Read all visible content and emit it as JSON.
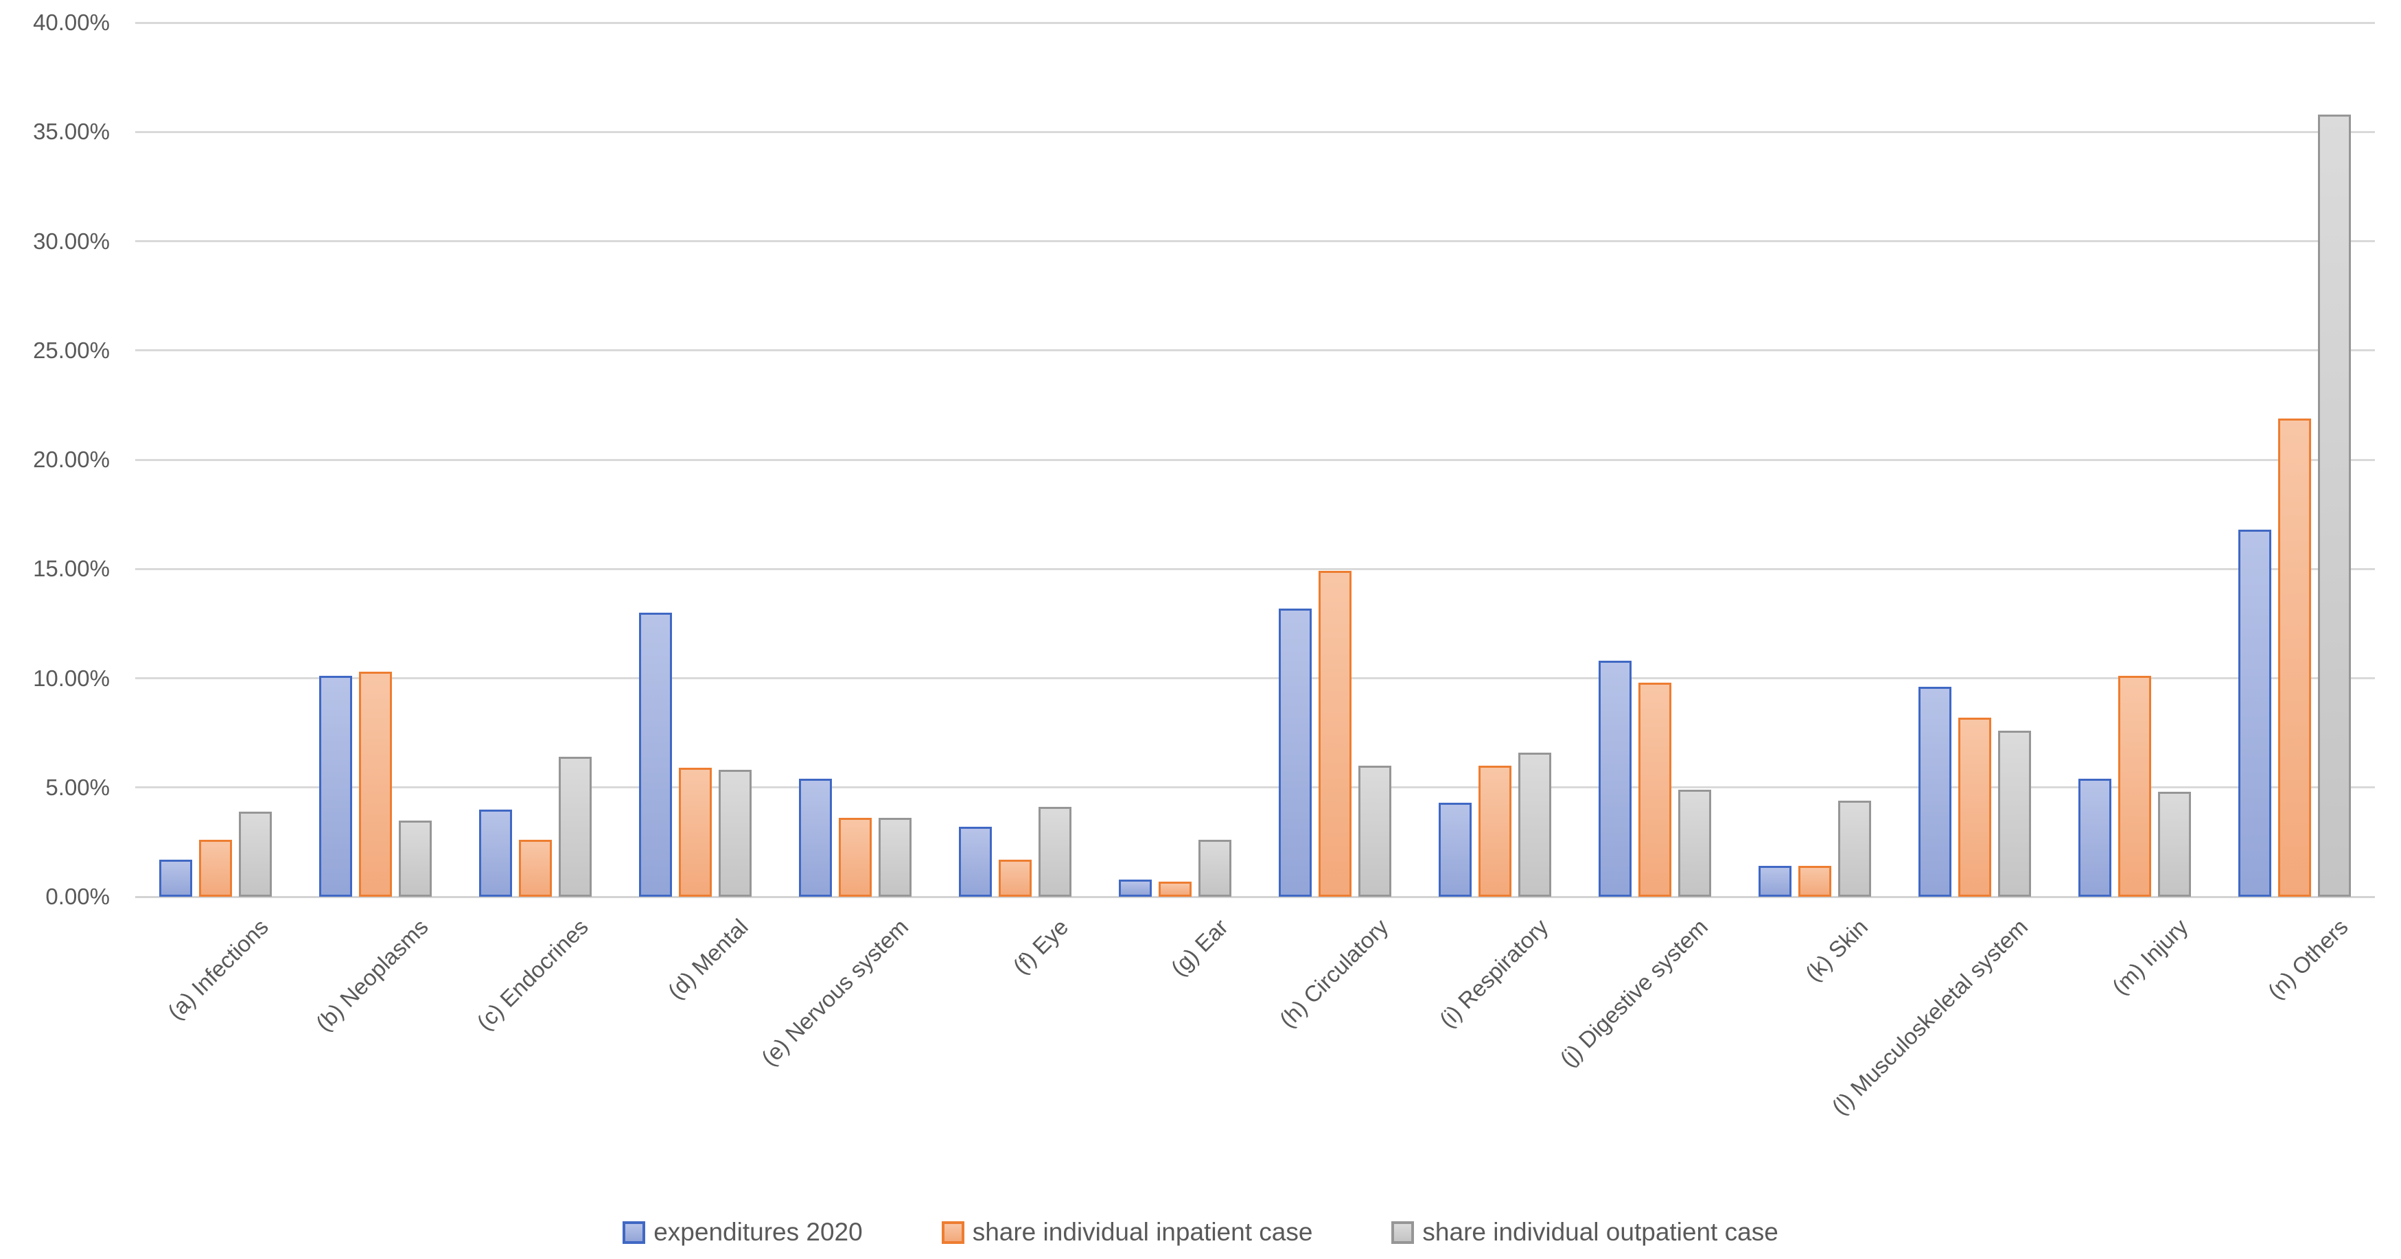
{
  "chart_data": {
    "type": "bar",
    "title": "",
    "categories": [
      "(a) Infections",
      "(b) Neoplasms",
      "(c) Endocrines",
      "(d) Mental",
      "(e) Nervous system",
      "(f) Eye",
      "(g) Ear",
      "(h) Circulatory",
      "(i) Respiratory",
      "(j) Digestive system",
      "(k) Skin",
      "(l) Musculoskeletal system",
      "(m) Injury",
      "(n) Others"
    ],
    "series": [
      {
        "name": "expenditures 2020",
        "values": [
          1.7,
          10.1,
          4.0,
          13.0,
          5.4,
          3.2,
          0.8,
          13.2,
          4.3,
          10.8,
          1.4,
          9.6,
          5.4,
          16.8
        ],
        "fill_top": "#B7C3E8",
        "fill_bottom": "#93A5D8",
        "border": "#4068C4"
      },
      {
        "name": "share individual inpatient case",
        "values": [
          2.6,
          10.3,
          2.6,
          5.9,
          3.6,
          1.7,
          0.7,
          14.9,
          6.0,
          9.8,
          1.4,
          8.2,
          10.1,
          21.9
        ],
        "fill_top": "#F8C6A6",
        "fill_bottom": "#F3A97B",
        "border": "#ED7D31"
      },
      {
        "name": "share individual outpatient case",
        "values": [
          3.9,
          3.5,
          6.4,
          5.8,
          3.6,
          4.1,
          2.6,
          6.0,
          6.6,
          4.9,
          4.4,
          7.6,
          4.8,
          35.8
        ],
        "fill_top": "#DBDBDB",
        "fill_bottom": "#C4C4C4",
        "border": "#969696"
      }
    ],
    "y_axis": {
      "min": 0,
      "max": 40,
      "step": 5,
      "tick_labels": [
        "0.00%",
        "5.00%",
        "10.00%",
        "15.00%",
        "20.00%",
        "25.00%",
        "30.00%",
        "35.00%",
        "40.00%"
      ],
      "unit": "%"
    },
    "xlabel": "",
    "ylabel": "",
    "grid": true,
    "legend_position": "bottom",
    "text_color": "#595959",
    "gridline_color": "#D9D9D9",
    "background_color": "#FFFFFF"
  }
}
